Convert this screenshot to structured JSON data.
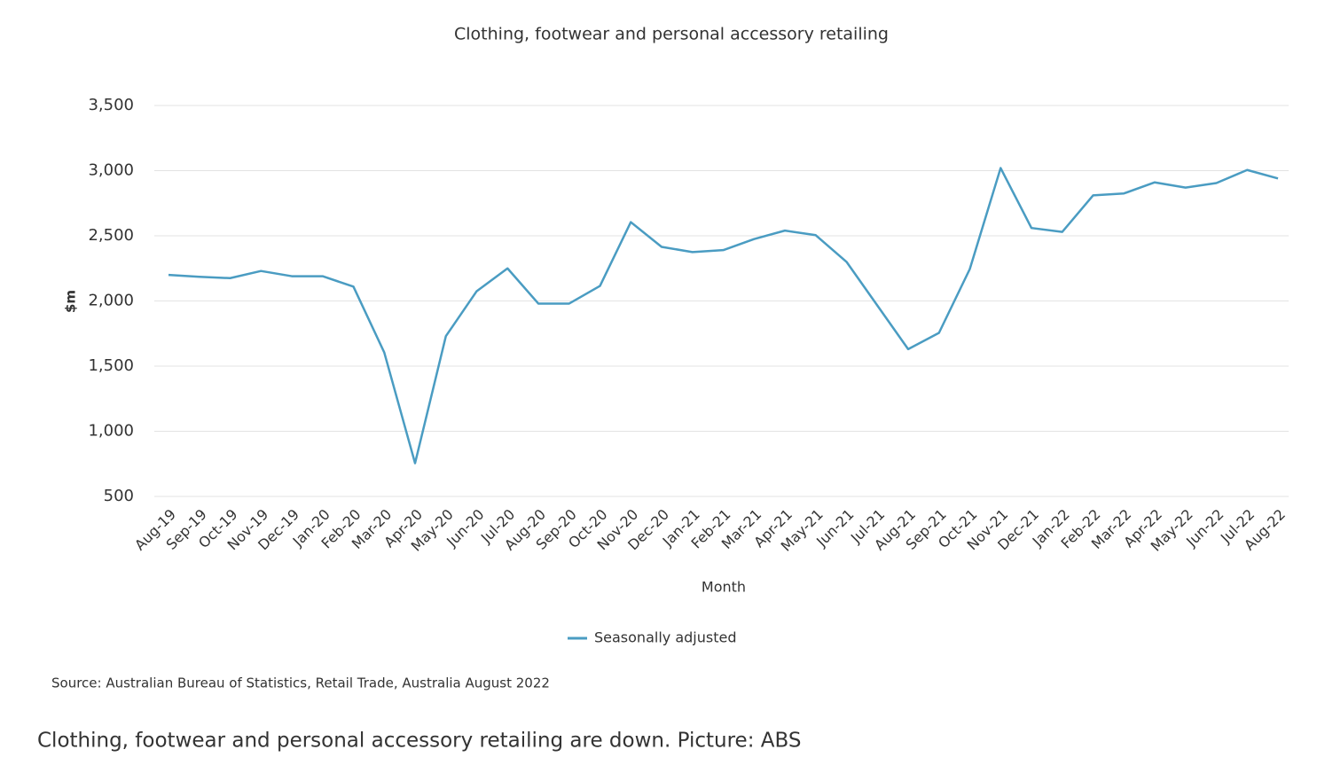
{
  "chart_data": {
    "type": "line",
    "title": "Clothing, footwear and personal accessory retailing",
    "x_label": "Month",
    "y_label": "$m",
    "categories": [
      "Aug-19",
      "Sep-19",
      "Oct-19",
      "Nov-19",
      "Dec-19",
      "Jan-20",
      "Feb-20",
      "Mar-20",
      "Apr-20",
      "May-20",
      "Jun-20",
      "Jul-20",
      "Aug-20",
      "Sep-20",
      "Oct-20",
      "Nov-20",
      "Dec-20",
      "Jan-21",
      "Feb-21",
      "Mar-21",
      "Apr-21",
      "May-21",
      "Jun-21",
      "Jul-21",
      "Aug-21",
      "Sep-21",
      "Oct-21",
      "Nov-21",
      "Dec-21",
      "Jan-22",
      "Feb-22",
      "Mar-22",
      "Apr-22",
      "May-22",
      "Jun-22",
      "Jul-22",
      "Aug-22"
    ],
    "series": [
      {
        "name": "Seasonally adjusted",
        "color": "#4a9cc2",
        "values": [
          2200,
          2185,
          2175,
          2230,
          2190,
          2190,
          2110,
          1605,
          755,
          1730,
          2075,
          2250,
          1980,
          1980,
          2115,
          2605,
          2415,
          2375,
          2390,
          2475,
          2540,
          2505,
          2300,
          1965,
          1630,
          1755,
          2245,
          3020,
          2560,
          2530,
          2810,
          2825,
          2910,
          2870,
          2905,
          3005,
          2940
        ]
      }
    ],
    "ylim": [
      500,
      3500
    ],
    "yticks": [
      500,
      {
        "value": 1000,
        "label": "1,000"
      },
      {
        "value": 1500,
        "label": "1,500"
      },
      {
        "value": 2000,
        "label": "2,000"
      },
      {
        "value": 2500,
        "label": "2,500"
      },
      {
        "value": 3000,
        "label": "3,000"
      },
      {
        "value": 3500,
        "label": "3,500"
      }
    ],
    "grid": true,
    "source": "Source: Australian Bureau of Statistics, Retail Trade, Australia August 2022"
  },
  "caption": "Clothing, footwear and personal accessory retailing are down. Picture: ABS"
}
